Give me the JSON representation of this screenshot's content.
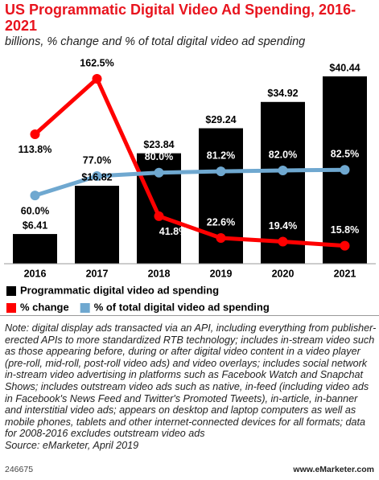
{
  "chart_data": {
    "type": "bar",
    "title": "US Programmatic Digital Video Ad Spending, 2016-2021",
    "subtitle": "billions, % change and % of total digital video ad spending",
    "categories": [
      "2016",
      "2017",
      "2018",
      "2019",
      "2020",
      "2021"
    ],
    "ylim": [
      0,
      42
    ],
    "y2lim": [
      0,
      171
    ],
    "series": [
      {
        "name": "Programmatic digital video ad spending",
        "type": "bar",
        "color": "#000000",
        "values": [
          6.41,
          16.82,
          23.84,
          29.24,
          34.92,
          40.44
        ],
        "value_labels": [
          "$6.41",
          "$16.82",
          "$23.84",
          "$29.24",
          "$34.92",
          "$40.44"
        ]
      },
      {
        "name": "% change",
        "type": "line",
        "axis": "y2",
        "color": "#ff0000",
        "values": [
          113.8,
          162.5,
          41.8,
          22.6,
          19.4,
          15.8
        ],
        "value_labels": [
          "113.8%",
          "162.5%",
          "41.8%",
          "22.6%",
          "19.4%",
          "15.8%"
        ]
      },
      {
        "name": "% of total digital video ad spending",
        "type": "line",
        "axis": "y2",
        "color": "#6fa8d0",
        "values": [
          60.0,
          77.0,
          80.0,
          81.2,
          82.0,
          82.5
        ],
        "value_labels": [
          "60.0%",
          "77.0%",
          "80.0%",
          "81.2%",
          "82.0%",
          "82.5%"
        ]
      }
    ],
    "note": "Note: digital display ads transacted via an API, including everything from publisher-erected APIs to more standardized RTB technology; includes in-stream video such as those appearing before, during or after digital video content in a video player (pre-roll, mid-roll, post-roll video ads) and video overlays; includes social network in-stream video advertising in platforms such as Facebook Watch and Snapchat Shows; includes outstream video ads such as native, in-feed (including video ads in Facebook's News Feed and Twitter's Promoted Tweets), in-article, in-banner and interstitial video ads; appears on desktop and laptop computers as well as mobile phones, tablets and other internet-connected devices for all formats; data for 2008-2016 excludes outstream video ads",
    "source": "Source: eMarketer, April 2019",
    "chart_id": "246675",
    "brand": "www.eMarketer.com"
  }
}
